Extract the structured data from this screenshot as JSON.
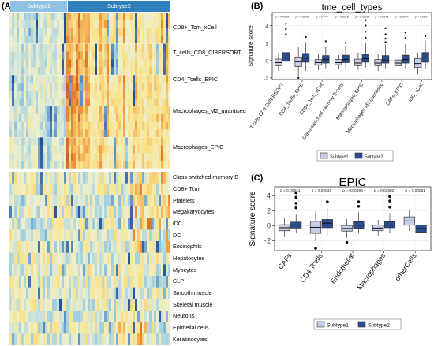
{
  "panel_a": {
    "letter": "(A)",
    "subtypes": [
      "Subtype1",
      "Subtype2"
    ],
    "top_rows": [
      "CD8+_Tcm_xCell",
      "T_cells_CD8_CIBERSORT",
      "CD4_Tcells_EPIC",
      "Macrophages_M2_quantiseq",
      "Macrophages_EPIC"
    ],
    "bottom_rows": [
      "Class-switched memory B-",
      "CD8+ Tcm",
      "Platelets",
      "Megakaryocytes",
      "iDC",
      "DC",
      "Eosinophils",
      "Hepatocytes",
      "Myocytes",
      "CLP",
      "Smooth muscle",
      "Skeletal muscle",
      "Neurons",
      "Epithelial cells",
      "Keratinocytes"
    ]
  },
  "chart_data": [
    {
      "panel": "(B)",
      "type": "box",
      "title": "tme_cell_types",
      "ylabel": "Signature score",
      "ylim": [
        -2.2,
        5.5
      ],
      "yticks": [
        -2,
        0,
        2,
        4
      ],
      "categories": [
        "T cells CD8 CIBERSORT",
        "CD4_Tcells_EPIC",
        "CD8+_Tcm_xCell",
        "Class-switched memory B-cells",
        "Macrophages_EPIC",
        "Macrophages M2 quantiseq",
        "CAFs_EPIC",
        "iDC_xCell"
      ],
      "pvalues": [
        "p = 0.0018",
        "p = 0.0292",
        "p = 0.0??",
        "p = 0.0115",
        "p = 0.0298",
        "p = 0.0248",
        "p = 0.0094",
        "p = 0.0207"
      ],
      "series": [
        {
          "name": "Subtype1",
          "color": "#c6cde6",
          "boxes": [
            [
              -1.2,
              -0.6,
              -0.25,
              0.15,
              0.7
            ],
            [
              -1.8,
              -0.7,
              -0.15,
              0.4,
              1.5
            ],
            [
              -1.1,
              -0.55,
              -0.25,
              0.1,
              0.7
            ],
            [
              -1.0,
              -0.5,
              -0.25,
              0.1,
              0.6
            ],
            [
              -1.1,
              -0.6,
              -0.3,
              0.15,
              0.9
            ],
            [
              -1.2,
              -0.6,
              -0.3,
              0.1,
              0.8
            ],
            [
              -1.1,
              -0.6,
              -0.3,
              0.05,
              0.6
            ],
            [
              -1.6,
              -0.8,
              -0.35,
              0.2,
              0.9
            ]
          ],
          "outliers": [
            [],
            [
              -2.0
            ],
            [],
            [],
            [],
            [],
            [],
            []
          ]
        },
        {
          "name": "Subtype2",
          "color": "#2b4c8c",
          "boxes": [
            [
              -1.0,
              -0.1,
              0.3,
              0.9,
              2.2
            ],
            [
              -1.2,
              -0.2,
              0.25,
              0.8,
              2.1
            ],
            [
              -0.9,
              -0.3,
              0.1,
              0.55,
              1.6
            ],
            [
              -0.9,
              -0.25,
              0.1,
              0.6,
              1.7
            ],
            [
              -0.8,
              -0.2,
              0.2,
              0.7,
              2.0
            ],
            [
              -0.9,
              -0.3,
              0.05,
              0.55,
              1.8
            ],
            [
              -0.9,
              -0.3,
              0.1,
              0.6,
              1.9
            ],
            [
              -1.0,
              -0.2,
              0.3,
              0.9,
              2.3
            ]
          ],
          "outliers": [
            [
              3.0,
              3.6,
              4.2
            ],
            [
              2.7
            ],
            [
              2.2
            ],
            [
              2.0
            ],
            [
              2.6,
              3.3,
              4.0,
              4.6
            ],
            [
              2.1,
              2.5,
              3.0,
              3.7
            ],
            [
              2.6,
              3.2
            ],
            [
              2.8
            ]
          ]
        }
      ],
      "legend": [
        "Subtype1",
        "Subtype2"
      ]
    },
    {
      "panel": "(C)",
      "type": "box",
      "title": "EPIC",
      "ylabel": "Signature score",
      "ylim": [
        -3.3,
        5.2
      ],
      "yticks": [
        -2,
        0,
        2,
        4
      ],
      "categories": [
        "CAFs",
        "CD4 Tcells",
        "Endothelial",
        "Macrophages",
        "otherCells"
      ],
      "pvalues": [
        "p = 0.00541",
        "p = 0.02915",
        "p = 0.00498",
        "p = 0.02982",
        "p = 0.00061"
      ],
      "series": [
        {
          "name": "Subtype1",
          "color": "#c6cde6",
          "boxes": [
            [
              -1.5,
              -0.65,
              -0.25,
              0.15,
              1.0
            ],
            [
              -2.0,
              -1.0,
              -0.2,
              0.6,
              1.9
            ],
            [
              -1.6,
              -0.7,
              -0.35,
              0.05,
              0.9
            ],
            [
              -1.3,
              -0.65,
              -0.3,
              0.1,
              0.8
            ],
            [
              -0.7,
              0.1,
              0.65,
              1.2,
              2.2
            ]
          ],
          "outliers": [
            [],
            [
              -3.0
            ],
            [
              -2.2
            ],
            [],
            []
          ]
        },
        {
          "name": "Subtype2",
          "color": "#2b4c8c",
          "boxes": [
            [
              -0.9,
              -0.3,
              0.1,
              0.5,
              1.6
            ],
            [
              -1.4,
              -0.25,
              0.35,
              0.85,
              2.3
            ],
            [
              -1.0,
              -0.35,
              0.1,
              0.55,
              1.8
            ],
            [
              -0.9,
              -0.25,
              0.1,
              0.55,
              1.7
            ],
            [
              -1.7,
              -0.85,
              -0.35,
              0.1,
              1.1
            ]
          ],
          "outliers": [
            [
              2.4,
              3.0,
              3.8,
              4.4
            ],
            [
              3.2
            ],
            [
              2.6,
              3.2
            ],
            [
              2.5,
              3.3,
              3.9
            ],
            []
          ]
        }
      ],
      "legend": [
        "Subtype1",
        "Subtype2"
      ]
    }
  ]
}
